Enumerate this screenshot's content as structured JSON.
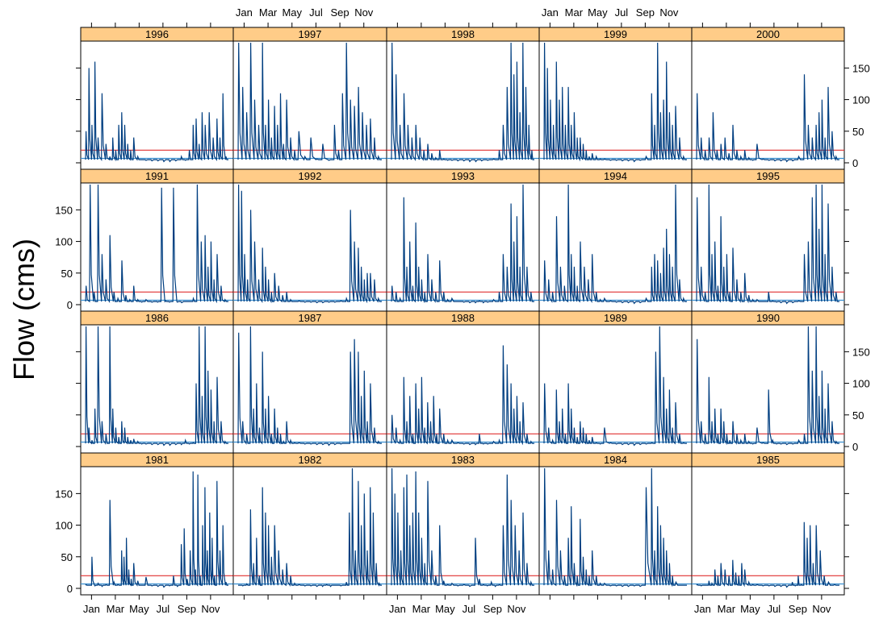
{
  "chart_data": {
    "type": "line",
    "ylabel": "Flow (cms)",
    "ylim": [
      0,
      190
    ],
    "y_ticks": [
      0,
      50,
      100,
      150
    ],
    "x_ticks": [
      "Jan",
      "Mar",
      "May",
      "Jul",
      "Sep",
      "Nov"
    ],
    "reference_lines": [
      {
        "value": 20,
        "color": "#e03030"
      },
      {
        "value": 7,
        "color": "#3a8fd0"
      }
    ],
    "colors": {
      "strip": "#ffcc88",
      "line": "#003e80",
      "frame": "#000000"
    },
    "panels": [
      {
        "year": "1981",
        "jan": [
          6,
          5,
          50,
          4
        ],
        "feb": [
          8,
          3,
          6
        ],
        "mar": [
          140,
          10,
          6
        ],
        "apr": [
          60,
          50,
          80,
          30,
          15
        ],
        "may": [
          40,
          12,
          5
        ],
        "jun": [
          18,
          4
        ],
        "jul": [
          3,
          2
        ],
        "aug": [
          4,
          20,
          3
        ],
        "sep": [
          70,
          95,
          15,
          60
        ],
        "oct": [
          185,
          30,
          180,
          20,
          100
        ],
        "nov": [
          160,
          60,
          120,
          80,
          20
        ],
        "dec": [
          170,
          60,
          100,
          10
        ]
      },
      {
        "year": "1982",
        "jan": [
          5,
          4,
          7
        ],
        "feb": [
          125,
          40,
          80,
          20
        ],
        "mar": [
          160,
          120,
          100,
          50
        ],
        "apr": [
          100,
          60,
          30
        ],
        "may": [
          40,
          20,
          8
        ],
        "jun": [
          6,
          4
        ],
        "jul": [
          4,
          3
        ],
        "aug": [
          3,
          6,
          3
        ],
        "sep": [
          5,
          4
        ],
        "oct": [
          10,
          120,
          190,
          60
        ],
        "nov": [
          170,
          100,
          150,
          60
        ],
        "dec": [
          160,
          120,
          40,
          8
        ]
      },
      {
        "year": "1983",
        "jan": [
          190,
          150,
          120,
          60
        ],
        "feb": [
          160,
          180,
          100,
          120
        ],
        "mar": [
          185,
          120,
          80,
          40
        ],
        "apr": [
          170,
          60,
          20
        ],
        "may": [
          100,
          12,
          6
        ],
        "jun": [
          8,
          4
        ],
        "jul": [
          6,
          3
        ],
        "aug": [
          80,
          15,
          6
        ],
        "sep": [
          4,
          10,
          3
        ],
        "oct": [
          6,
          100,
          180
        ],
        "nov": [
          140,
          100,
          60
        ],
        "dec": [
          120,
          40,
          10
        ]
      },
      {
        "year": "1984",
        "jan": [
          190,
          60,
          30
        ],
        "feb": [
          140,
          60,
          20
        ],
        "mar": [
          80,
          130,
          40,
          20
        ],
        "apr": [
          110,
          50,
          30,
          20
        ],
        "may": [
          60,
          20,
          8
        ],
        "jun": [
          8,
          4
        ],
        "jul": [
          4,
          3
        ],
        "aug": [
          3,
          4
        ],
        "sep": [
          3,
          160
        ],
        "oct": [
          190,
          60,
          130,
          100
        ],
        "nov": [
          80,
          60,
          40,
          20
        ],
        "dec": [
          10,
          5
        ]
      },
      {
        "year": "1985",
        "jan": [
          6,
          4,
          5
        ],
        "feb": [
          12,
          8,
          30,
          20
        ],
        "mar": [
          40,
          30,
          20
        ],
        "apr": [
          45,
          25,
          20,
          40
        ],
        "may": [
          30,
          10,
          6
        ],
        "jun": [
          6,
          4
        ],
        "jul": [
          4,
          3
        ],
        "aug": [
          3,
          2
        ],
        "sep": [
          10,
          4,
          20,
          6
        ],
        "oct": [
          105,
          80,
          100,
          40
        ],
        "nov": [
          100,
          60,
          20
        ],
        "dec": [
          10,
          6
        ]
      },
      {
        "year": "1986",
        "jan": [
          190,
          30,
          10,
          60
        ],
        "feb": [
          190,
          40,
          20
        ],
        "mar": [
          190,
          60,
          30,
          15
        ],
        "apr": [
          40,
          30,
          15,
          10
        ],
        "may": [
          12,
          8,
          4
        ],
        "jun": [
          4,
          3
        ],
        "jul": [
          3,
          2
        ],
        "aug": [
          2,
          3
        ],
        "sep": [
          3,
          10,
          4
        ],
        "oct": [
          6,
          100,
          190,
          80
        ],
        "nov": [
          190,
          120,
          90,
          40
        ],
        "dec": [
          110,
          40,
          8
        ]
      },
      {
        "year": "1987",
        "jan": [
          180,
          40,
          20
        ],
        "feb": [
          190,
          60,
          100,
          30
        ],
        "mar": [
          150,
          60,
          80,
          20
        ],
        "apr": [
          60,
          30,
          20,
          8
        ],
        "may": [
          40,
          10,
          6
        ],
        "jun": [
          6,
          4
        ],
        "jul": [
          4,
          3
        ],
        "aug": [
          3,
          2
        ],
        "sep": [
          3,
          4
        ],
        "oct": [
          5,
          150,
          170
        ],
        "nov": [
          150,
          80,
          120,
          40
        ],
        "dec": [
          100,
          30,
          8
        ]
      },
      {
        "year": "1988",
        "jan": [
          50,
          30,
          10
        ],
        "feb": [
          110,
          40,
          80,
          20
        ],
        "mar": [
          100,
          60,
          110,
          30
        ],
        "apr": [
          70,
          40,
          80,
          20
        ],
        "may": [
          60,
          20,
          10
        ],
        "jun": [
          10,
          6
        ],
        "jul": [
          4,
          3
        ],
        "aug": [
          3,
          20,
          4
        ],
        "sep": [
          4,
          8
        ],
        "oct": [
          10,
          160,
          130
        ],
        "nov": [
          100,
          60,
          80,
          40
        ],
        "dec": [
          70,
          20,
          8
        ]
      },
      {
        "year": "1989",
        "jan": [
          100,
          30,
          10
        ],
        "feb": [
          90,
          40,
          60,
          20
        ],
        "mar": [
          100,
          60,
          30,
          15
        ],
        "apr": [
          40,
          30,
          20,
          10
        ],
        "may": [
          15,
          6,
          4
        ],
        "jun": [
          30,
          6
        ],
        "jul": [
          4,
          3
        ],
        "aug": [
          3,
          2
        ],
        "sep": [
          3,
          4
        ],
        "oct": [
          6,
          150,
          190
        ],
        "nov": [
          110,
          60,
          90,
          30
        ],
        "dec": [
          70,
          20,
          6
        ]
      },
      {
        "year": "1990",
        "jan": [
          170,
          40,
          20
        ],
        "feb": [
          110,
          40,
          60,
          20
        ],
        "mar": [
          60,
          40,
          20,
          10
        ],
        "apr": [
          40,
          20,
          10
        ],
        "may": [
          20,
          8,
          4
        ],
        "jun": [
          30,
          6
        ],
        "jul": [
          90,
          10,
          4
        ],
        "aug": [
          4,
          3
        ],
        "sep": [
          4,
          10
        ],
        "oct": [
          20,
          190,
          120
        ],
        "nov": [
          190,
          80,
          120,
          60
        ],
        "dec": [
          100,
          40,
          8
        ]
      },
      {
        "year": "1991",
        "jan": [
          30,
          190,
          20
        ],
        "feb": [
          190,
          80,
          40
        ],
        "mar": [
          110,
          20,
          10
        ],
        "apr": [
          70,
          15,
          8
        ],
        "may": [
          30,
          8,
          4
        ],
        "jun": [
          8,
          4
        ],
        "jul": [
          4,
          185,
          6
        ],
        "aug": [
          4,
          185,
          4
        ],
        "sep": [
          3,
          5
        ],
        "oct": [
          10,
          190,
          100
        ],
        "nov": [
          110,
          60,
          100,
          40
        ],
        "dec": [
          80,
          30,
          8
        ]
      },
      {
        "year": "1992",
        "jan": [
          190,
          180,
          80,
          40
        ],
        "feb": [
          150,
          100,
          40
        ],
        "mar": [
          90,
          60,
          40,
          20
        ],
        "apr": [
          50,
          30,
          15
        ],
        "may": [
          20,
          8,
          5
        ],
        "jun": [
          6,
          4
        ],
        "jul": [
          4,
          3
        ],
        "aug": [
          3,
          4
        ],
        "sep": [
          4,
          6
        ],
        "oct": [
          10,
          150,
          100
        ],
        "nov": [
          90,
          60,
          40,
          50
        ],
        "dec": [
          50,
          40,
          10
        ]
      },
      {
        "year": "1993",
        "jan": [
          30,
          20,
          10
        ],
        "feb": [
          170,
          60,
          100,
          30
        ],
        "mar": [
          130,
          60,
          40,
          20
        ],
        "apr": [
          80,
          40,
          20
        ],
        "may": [
          70,
          20,
          8
        ],
        "jun": [
          10,
          5
        ],
        "jul": [
          4,
          3
        ],
        "aug": [
          3,
          6,
          3
        ],
        "sep": [
          4,
          8
        ],
        "oct": [
          20,
          80,
          60
        ],
        "nov": [
          160,
          100,
          140,
          60
        ],
        "dec": [
          190,
          60,
          20
        ]
      },
      {
        "year": "1994",
        "jan": [
          70,
          40,
          20
        ],
        "feb": [
          140,
          60,
          30
        ],
        "mar": [
          190,
          80,
          60,
          30
        ],
        "apr": [
          100,
          60,
          40
        ],
        "may": [
          80,
          20,
          8
        ],
        "jun": [
          10,
          6
        ],
        "jul": [
          4,
          3
        ],
        "aug": [
          3,
          2
        ],
        "sep": [
          3,
          10
        ],
        "oct": [
          60,
          80,
          70,
          50
        ],
        "nov": [
          90,
          120,
          80,
          60
        ],
        "dec": [
          190,
          40,
          10
        ]
      },
      {
        "year": "1995",
        "jan": [
          170,
          60,
          20
        ],
        "feb": [
          190,
          80,
          100,
          30
        ],
        "mar": [
          140,
          60,
          80,
          20
        ],
        "apr": [
          90,
          40,
          20
        ],
        "may": [
          50,
          15,
          8
        ],
        "jun": [
          8,
          5
        ],
        "jul": [
          20,
          6,
          4
        ],
        "aug": [
          3,
          2
        ],
        "sep": [
          3,
          6
        ],
        "oct": [
          80,
          100,
          170
        ],
        "nov": [
          190,
          120,
          190,
          80
        ],
        "dec": [
          160,
          60,
          20
        ]
      },
      {
        "year": "1996",
        "jan": [
          50,
          150,
          60,
          160
        ],
        "feb": [
          40,
          110,
          30
        ],
        "mar": [
          10,
          40,
          20,
          60
        ],
        "apr": [
          80,
          60,
          30,
          20
        ],
        "may": [
          40,
          10,
          5
        ],
        "jun": [
          4,
          3
        ],
        "jul": [
          3,
          2
        ],
        "aug": [
          2,
          3
        ],
        "sep": [
          10,
          4,
          20
        ],
        "oct": [
          60,
          70,
          30,
          80
        ],
        "nov": [
          60,
          80,
          40
        ],
        "dec": [
          70,
          40,
          110,
          10
        ]
      },
      {
        "year": "1997",
        "jan": [
          190,
          120,
          80
        ],
        "feb": [
          190,
          100,
          60
        ],
        "mar": [
          190,
          60,
          100,
          40
        ],
        "apr": [
          90,
          60,
          110,
          30
        ],
        "may": [
          100,
          40,
          20
        ],
        "jun": [
          50,
          10
        ],
        "jul": [
          40,
          6
        ],
        "aug": [
          30,
          4
        ],
        "sep": [
          60,
          20,
          110
        ],
        "oct": [
          190,
          100,
          90
        ],
        "nov": [
          120,
          80,
          60
        ],
        "dec": [
          70,
          40,
          10
        ]
      },
      {
        "year": "1998",
        "jan": [
          190,
          140,
          60
        ],
        "feb": [
          110,
          60,
          40
        ],
        "mar": [
          60,
          40,
          20
        ],
        "apr": [
          30,
          15,
          8
        ],
        "may": [
          20,
          6,
          4
        ],
        "jun": [
          4,
          3
        ],
        "jul": [
          3,
          2
        ],
        "aug": [
          2,
          3
        ],
        "sep": [
          4,
          6
        ],
        "oct": [
          20,
          60,
          120
        ],
        "nov": [
          190,
          140,
          160,
          80
        ],
        "dec": [
          190,
          120,
          60,
          20
        ]
      },
      {
        "year": "1999",
        "jan": [
          190,
          150,
          100,
          60
        ],
        "feb": [
          160,
          100,
          120,
          60
        ],
        "mar": [
          120,
          60,
          80,
          40
        ],
        "apr": [
          40,
          30,
          20,
          10
        ],
        "may": [
          15,
          10,
          6
        ],
        "jun": [
          6,
          4
        ],
        "jul": [
          4,
          3
        ],
        "aug": [
          3,
          2
        ],
        "sep": [
          4,
          10
        ],
        "oct": [
          110,
          60,
          190,
          80
        ],
        "nov": [
          100,
          160,
          80,
          60
        ],
        "dec": [
          90,
          40,
          10
        ]
      },
      {
        "year": "2000",
        "jan": [
          110,
          40,
          20
        ],
        "feb": [
          40,
          80,
          20
        ],
        "mar": [
          30,
          40,
          15
        ],
        "apr": [
          60,
          20,
          10
        ],
        "may": [
          20,
          8,
          4
        ],
        "jun": [
          30,
          6
        ],
        "jul": [
          4,
          3
        ],
        "aug": [
          3,
          2
        ],
        "sep": [
          3,
          10
        ],
        "oct": [
          140,
          60,
          40
        ],
        "nov": [
          60,
          80,
          100,
          40
        ],
        "dec": [
          120,
          50,
          10
        ]
      }
    ]
  }
}
